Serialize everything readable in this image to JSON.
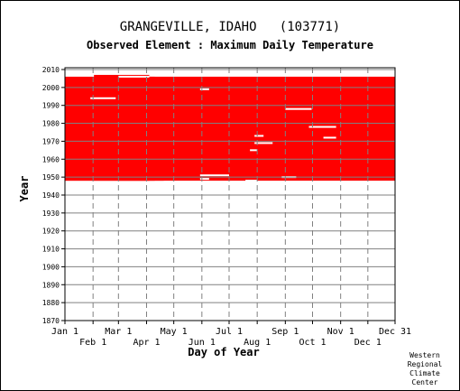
{
  "chart_data": {
    "type": "heatmap",
    "title": "GRANGEVILLE, IDAHO   (103771)",
    "subtitle": "Observed Element : Maximum Daily Temperature",
    "xlabel": "Day of Year",
    "ylabel": "Year",
    "x_ticks_top": [
      "Jan 1",
      "Mar 1",
      "May 1",
      "Jul 1",
      "Sep 1",
      "Nov 1",
      "Dec 31"
    ],
    "x_ticks_bottom": [
      "Feb 1",
      "Apr 1",
      "Jun 1",
      "Aug 1",
      "Oct 1",
      "Dec 1"
    ],
    "x_tick_days": [
      1,
      32,
      60,
      91,
      121,
      152,
      182,
      213,
      244,
      274,
      305,
      335,
      365
    ],
    "y_ticks": [
      1870,
      1880,
      1890,
      1900,
      1910,
      1920,
      1930,
      1940,
      1950,
      1960,
      1970,
      1980,
      1990,
      2000,
      2010
    ],
    "ylim": [
      1870,
      2011
    ],
    "xlim": [
      1,
      365
    ],
    "grid": true,
    "data_color": "#ff0000",
    "series": [
      {
        "coverage": [
          {
            "year_start": 1948,
            "year_end": 1955,
            "day_start": 1,
            "day_end": 110
          },
          {
            "year_start": 1948,
            "year_end": 2006,
            "day_start": 60,
            "day_end": 365
          },
          {
            "year_start": 1948,
            "year_end": 2006,
            "day_start": 1,
            "day_end": 100
          },
          {
            "year_start": 1948,
            "year_end": 2007,
            "day_start": 33,
            "day_end": 94
          }
        ],
        "missing_segments": [
          {
            "year": 1994,
            "day_start": 29,
            "day_end": 57
          },
          {
            "year": 2006,
            "day_start": 60,
            "day_end": 94
          },
          {
            "year": 1999,
            "day_start": 150,
            "day_end": 160
          },
          {
            "year": 1988,
            "day_start": 244,
            "day_end": 273
          },
          {
            "year": 1978,
            "day_start": 270,
            "day_end": 300
          },
          {
            "year": 1973,
            "day_start": 210,
            "day_end": 220
          },
          {
            "year": 1972,
            "day_start": 286,
            "day_end": 300
          },
          {
            "year": 1969,
            "day_start": 210,
            "day_end": 230
          },
          {
            "year": 1965,
            "day_start": 205,
            "day_end": 213
          },
          {
            "year": 1951,
            "day_start": 150,
            "day_end": 182
          },
          {
            "year": 1950,
            "day_start": 240,
            "day_end": 256
          },
          {
            "year": 1949,
            "day_start": 150,
            "day_end": 160
          },
          {
            "year": 1948,
            "day_start": 200,
            "day_end": 213
          }
        ]
      }
    ]
  },
  "credit": {
    "line1": "Western",
    "line2": "Regional",
    "line3": "Climate",
    "line4": "Center"
  },
  "colors": {
    "background": "#ffffff",
    "grid": "#808080",
    "axis": "#000000"
  }
}
